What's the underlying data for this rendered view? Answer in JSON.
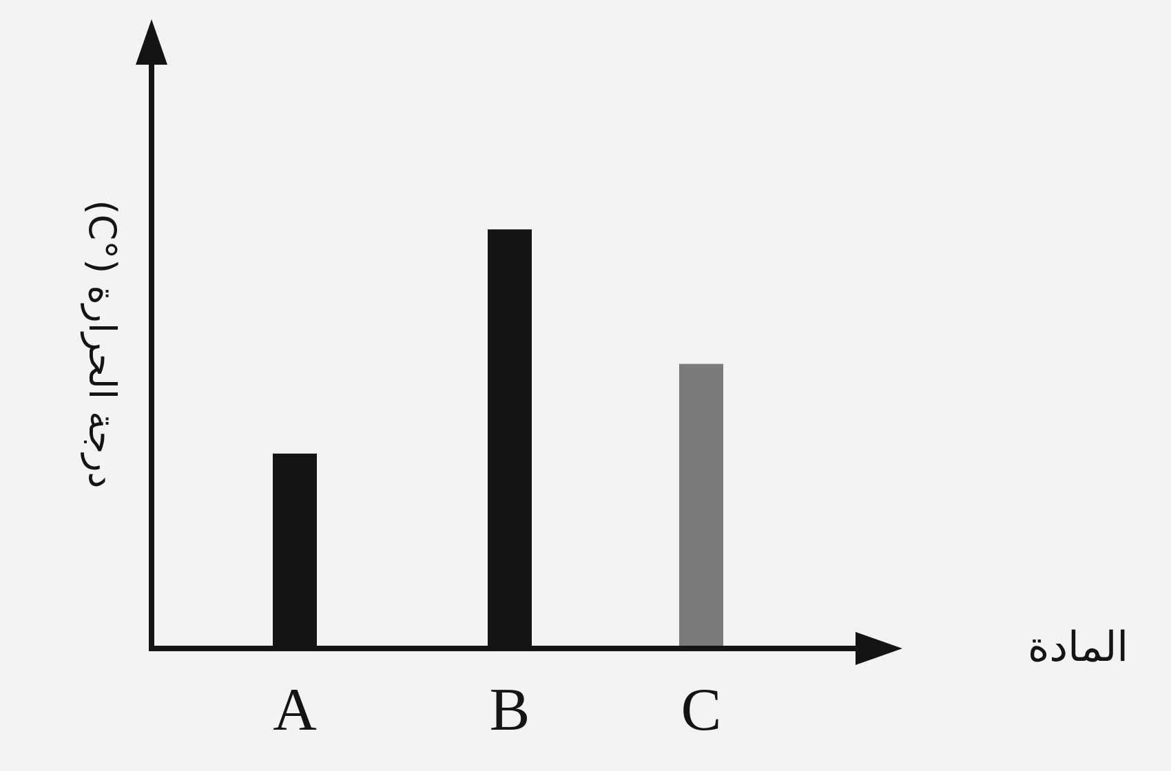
{
  "chart_data": {
    "type": "bar",
    "title": "",
    "xlabel": "المادة",
    "ylabel": "درجة الحرارة (°C)",
    "categories": [
      "A",
      "B",
      "C"
    ],
    "values": [
      30,
      65,
      44
    ],
    "ylim": [
      0,
      92
    ],
    "grid": false,
    "legend": "none",
    "bar_colors": [
      "#141414",
      "#141414",
      "#7a7a78"
    ],
    "axis_color": "#141414",
    "background": "#f4f3f1"
  }
}
